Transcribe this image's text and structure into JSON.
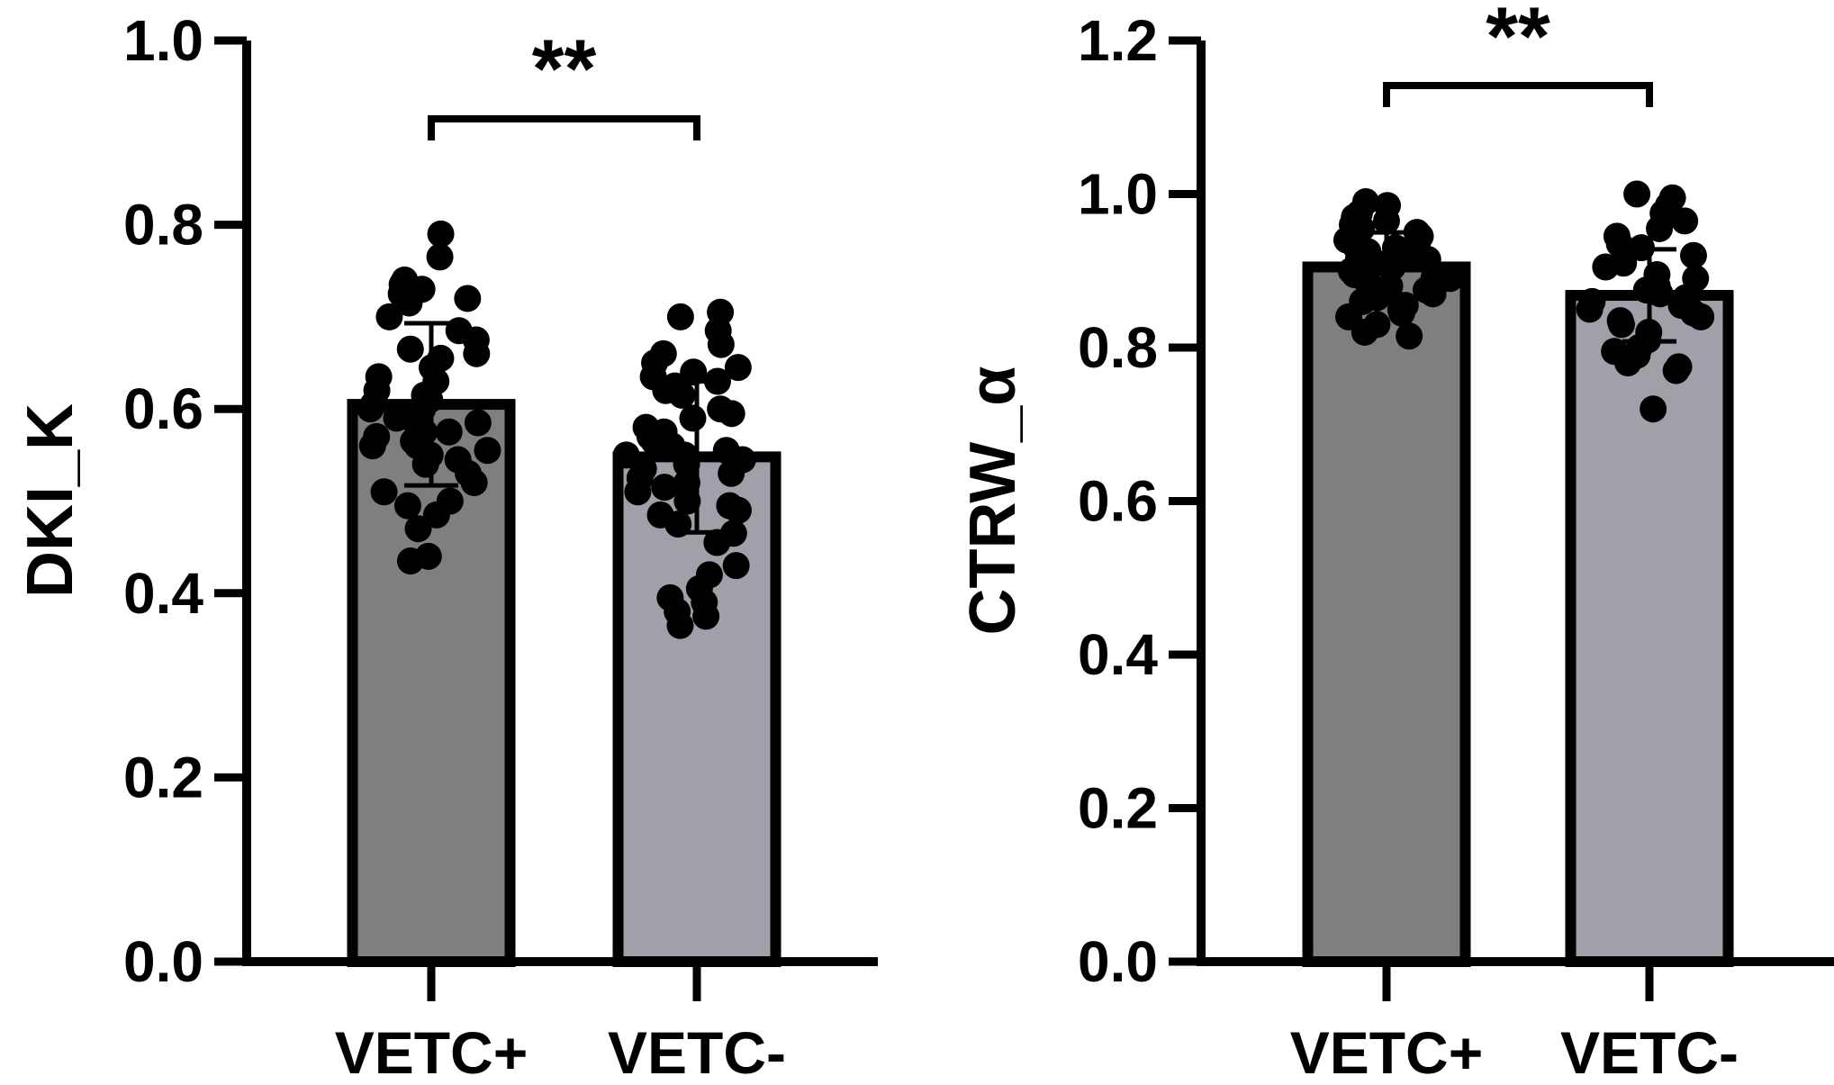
{
  "colors": {
    "axis": "#000000",
    "bar_vetc_pos": "#7f7f7f",
    "bar_vetc_neg": "#a1a0a8",
    "point": "#000000"
  },
  "chart_data": [
    {
      "type": "bar",
      "ylabel": "DKI_K",
      "categories": [
        "VETC+",
        "VETC-"
      ],
      "ylim": [
        0,
        1.0
      ],
      "yticks": [
        "0.0",
        "0.2",
        "0.4",
        "0.6",
        "0.8",
        "1.0"
      ],
      "values": [
        0.605,
        0.548
      ],
      "sd": [
        0.088,
        0.082
      ],
      "significance": "**",
      "points": [
        [
          0.79,
          0.765,
          0.74,
          0.735,
          0.725,
          0.73,
          0.72,
          0.715,
          0.7,
          0.685,
          0.675,
          0.665,
          0.66,
          0.655,
          0.645,
          0.635,
          0.63,
          0.62,
          0.615,
          0.61,
          0.605,
          0.6,
          0.6,
          0.595,
          0.59,
          0.585,
          0.58,
          0.575,
          0.575,
          0.57,
          0.57,
          0.565,
          0.56,
          0.56,
          0.555,
          0.55,
          0.545,
          0.54,
          0.53,
          0.52,
          0.51,
          0.5,
          0.495,
          0.485,
          0.47,
          0.44,
          0.435
        ],
        [
          0.705,
          0.7,
          0.685,
          0.67,
          0.66,
          0.65,
          0.645,
          0.64,
          0.635,
          0.63,
          0.625,
          0.62,
          0.615,
          0.6,
          0.595,
          0.59,
          0.58,
          0.575,
          0.57,
          0.565,
          0.56,
          0.555,
          0.55,
          0.55,
          0.545,
          0.54,
          0.535,
          0.53,
          0.525,
          0.52,
          0.515,
          0.51,
          0.5,
          0.495,
          0.49,
          0.485,
          0.475,
          0.465,
          0.455,
          0.43,
          0.42,
          0.405,
          0.395,
          0.39,
          0.38,
          0.375,
          0.365
        ]
      ]
    },
    {
      "type": "bar",
      "ylabel": "CTRW_α",
      "categories": [
        "VETC+",
        "VETC-"
      ],
      "ylim": [
        0,
        1.2
      ],
      "yticks": [
        "0.0",
        "0.2",
        "0.4",
        "0.6",
        "0.8",
        "1.0",
        "1.2"
      ],
      "values": [
        0.905,
        0.868
      ],
      "sd": [
        0.045,
        0.06
      ],
      "significance": "**",
      "points": [
        [
          0.99,
          0.985,
          0.975,
          0.97,
          0.965,
          0.96,
          0.955,
          0.95,
          0.945,
          0.94,
          0.935,
          0.93,
          0.93,
          0.925,
          0.92,
          0.915,
          0.915,
          0.91,
          0.905,
          0.905,
          0.9,
          0.895,
          0.89,
          0.89,
          0.885,
          0.88,
          0.875,
          0.87,
          0.865,
          0.86,
          0.855,
          0.85,
          0.845,
          0.84,
          0.83,
          0.82,
          0.815
        ],
        [
          1.0,
          0.995,
          0.985,
          0.975,
          0.965,
          0.955,
          0.945,
          0.935,
          0.93,
          0.92,
          0.91,
          0.905,
          0.895,
          0.89,
          0.88,
          0.875,
          0.87,
          0.865,
          0.86,
          0.855,
          0.85,
          0.845,
          0.84,
          0.835,
          0.83,
          0.82,
          0.81,
          0.8,
          0.795,
          0.79,
          0.78,
          0.775,
          0.77,
          0.72
        ]
      ]
    }
  ]
}
